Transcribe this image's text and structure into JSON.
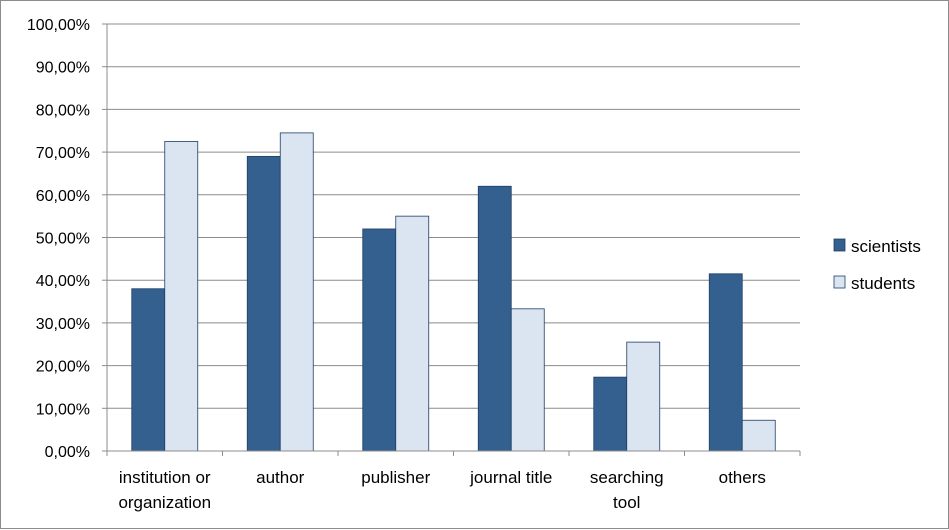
{
  "chart_data": {
    "type": "bar",
    "title": "",
    "xlabel": "",
    "ylabel": "",
    "ylim": [
      0,
      100
    ],
    "y_tick_step": 10,
    "y_tick_format": "percent-comma-2",
    "y_tick_labels": [
      "0,00%",
      "10,00%",
      "20,00%",
      "30,00%",
      "40,00%",
      "50,00%",
      "60,00%",
      "70,00%",
      "80,00%",
      "90,00%",
      "100,00%"
    ],
    "grid": true,
    "legend_position": "right",
    "categories": [
      [
        "institution or",
        "organization"
      ],
      [
        "author"
      ],
      [
        "publisher"
      ],
      [
        "journal title"
      ],
      [
        "searching",
        "tool"
      ],
      [
        "others"
      ]
    ],
    "series": [
      {
        "name": "scientists",
        "color": "#34608f",
        "values": [
          38.0,
          69.0,
          52.0,
          62.0,
          17.3,
          41.5
        ]
      },
      {
        "name": "students",
        "color": "#dbe4f1",
        "values": [
          72.5,
          74.5,
          55.0,
          33.3,
          25.5,
          7.2
        ]
      }
    ]
  }
}
